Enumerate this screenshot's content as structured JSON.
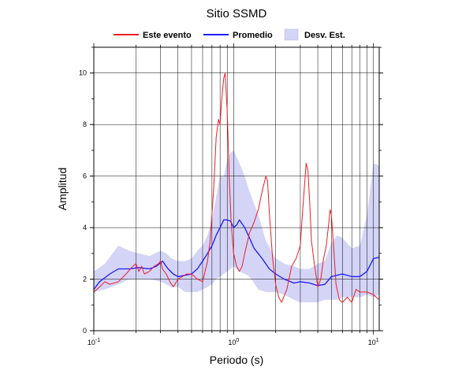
{
  "chart_data": {
    "type": "line",
    "title": "Sitio SSMD",
    "xlabel": "Periodo (s)",
    "ylabel": "Amplitud",
    "xscale": "log",
    "xlim": [
      0.1,
      11
    ],
    "ylim": [
      0,
      11
    ],
    "x_ticks": [
      {
        "value": 0.1,
        "base": "10",
        "exp": "-1"
      },
      {
        "value": 1,
        "base": "10",
        "exp": "0"
      },
      {
        "value": 10,
        "base": "10",
        "exp": "1"
      }
    ],
    "y_ticks": [
      "0",
      "2",
      "4",
      "6",
      "8",
      "10"
    ],
    "grid": true,
    "legend_position": "top",
    "legend": [
      {
        "label": "Este evento",
        "kind": "line",
        "color": "#ee1c24"
      },
      {
        "label": "Promedio",
        "kind": "line",
        "color": "#1a1aff"
      },
      {
        "label": "Desv. Est.",
        "kind": "band",
        "color": "#d4d4f7"
      }
    ],
    "band": {
      "name": "Desv. Est.",
      "color": "#d4d4f7",
      "x": [
        0.1,
        0.12,
        0.15,
        0.18,
        0.21,
        0.25,
        0.3,
        0.33,
        0.36,
        0.4,
        0.45,
        0.5,
        0.55,
        0.6,
        0.65,
        0.7,
        0.75,
        0.8,
        0.85,
        0.9,
        0.95,
        1.0,
        1.1,
        1.2,
        1.3,
        1.5,
        1.7,
        2.0,
        2.3,
        2.7,
        3.0,
        3.5,
        4.0,
        4.5,
        5.0,
        5.5,
        6.0,
        7.0,
        8.0,
        9.0,
        10.0,
        11.0
      ],
      "upper": [
        2.3,
        2.6,
        3.3,
        3.1,
        3.0,
        2.9,
        3.1,
        3.0,
        2.8,
        2.7,
        2.7,
        2.8,
        3.1,
        3.3,
        3.7,
        4.3,
        5.2,
        6.0,
        6.0,
        6.6,
        6.9,
        7.0,
        6.5,
        6.0,
        5.4,
        4.5,
        3.5,
        2.8,
        2.6,
        2.5,
        2.4,
        2.4,
        2.6,
        2.7,
        3.4,
        3.7,
        3.6,
        3.2,
        3.3,
        4.5,
        6.5,
        6.4
      ],
      "lower": [
        1.5,
        1.6,
        1.8,
        2.0,
        2.0,
        2.0,
        1.9,
        1.8,
        1.7,
        1.7,
        1.5,
        1.5,
        1.5,
        1.6,
        1.7,
        1.8,
        2.0,
        2.1,
        2.2,
        2.3,
        2.4,
        2.5,
        2.3,
        2.2,
        2.1,
        1.6,
        1.5,
        1.5,
        1.4,
        1.2,
        1.1,
        1.1,
        1.1,
        1.2,
        1.2,
        1.2,
        1.3,
        1.3,
        1.3,
        1.4,
        1.3,
        1.4
      ]
    },
    "series": [
      {
        "name": "Promedio",
        "color": "#1a1aff",
        "x": [
          0.1,
          0.11,
          0.13,
          0.15,
          0.18,
          0.21,
          0.25,
          0.28,
          0.31,
          0.34,
          0.37,
          0.4,
          0.45,
          0.5,
          0.55,
          0.6,
          0.65,
          0.7,
          0.75,
          0.8,
          0.85,
          0.9,
          0.95,
          1.0,
          1.05,
          1.1,
          1.2,
          1.3,
          1.4,
          1.6,
          1.8,
          2.0,
          2.3,
          2.7,
          3.0,
          3.5,
          4.0,
          4.5,
          5.0,
          6.0,
          7.0,
          8.0,
          9.0,
          10.0,
          11.0
        ],
        "y": [
          1.6,
          1.9,
          2.2,
          2.4,
          2.4,
          2.45,
          2.4,
          2.5,
          2.7,
          2.4,
          2.2,
          2.1,
          2.15,
          2.2,
          2.4,
          2.7,
          3.0,
          3.3,
          3.7,
          4.0,
          4.3,
          4.3,
          4.25,
          4.0,
          4.1,
          4.3,
          4.0,
          3.6,
          3.2,
          2.8,
          2.4,
          2.2,
          2.0,
          1.85,
          1.9,
          1.85,
          1.75,
          1.8,
          2.1,
          2.2,
          2.1,
          2.1,
          2.3,
          2.8,
          2.85
        ]
      },
      {
        "name": "Este evento",
        "color": "#ee1c24",
        "x": [
          0.1,
          0.11,
          0.12,
          0.13,
          0.15,
          0.17,
          0.19,
          0.2,
          0.21,
          0.22,
          0.23,
          0.25,
          0.27,
          0.29,
          0.3,
          0.31,
          0.33,
          0.35,
          0.37,
          0.4,
          0.43,
          0.46,
          0.5,
          0.55,
          0.6,
          0.65,
          0.68,
          0.72,
          0.75,
          0.78,
          0.8,
          0.82,
          0.85,
          0.87,
          0.9,
          0.93,
          0.96,
          1.0,
          1.05,
          1.1,
          1.15,
          1.2,
          1.3,
          1.4,
          1.5,
          1.6,
          1.7,
          1.75,
          1.8,
          1.9,
          2.0,
          2.1,
          2.2,
          2.4,
          2.6,
          2.8,
          3.0,
          3.1,
          3.2,
          3.3,
          3.4,
          3.5,
          3.6,
          3.8,
          4.0,
          4.2,
          4.4,
          4.6,
          4.8,
          4.9,
          5.0,
          5.2,
          5.4,
          5.7,
          6.0,
          6.5,
          7.0,
          7.5,
          8.0,
          9.0,
          10.0,
          11.0
        ],
        "y": [
          1.5,
          1.7,
          1.9,
          1.8,
          1.9,
          2.2,
          2.5,
          2.6,
          2.3,
          2.5,
          2.2,
          2.3,
          2.5,
          2.6,
          2.7,
          2.4,
          2.2,
          1.9,
          1.7,
          2.0,
          2.1,
          2.2,
          2.2,
          2.0,
          1.9,
          2.7,
          3.5,
          5.5,
          7.5,
          8.2,
          8.0,
          8.9,
          9.8,
          10.0,
          8.5,
          6.0,
          4.2,
          3.0,
          2.5,
          2.3,
          2.5,
          3.0,
          3.8,
          4.2,
          4.7,
          5.4,
          6.0,
          5.8,
          4.6,
          2.8,
          1.8,
          1.3,
          1.1,
          1.6,
          2.5,
          2.8,
          3.3,
          4.5,
          5.5,
          6.5,
          6.2,
          5.0,
          3.5,
          2.5,
          1.7,
          2.0,
          2.8,
          3.3,
          4.2,
          4.7,
          4.5,
          3.2,
          1.8,
          1.2,
          1.1,
          1.3,
          1.1,
          1.6,
          1.5,
          1.5,
          1.4,
          1.2
        ]
      }
    ]
  }
}
